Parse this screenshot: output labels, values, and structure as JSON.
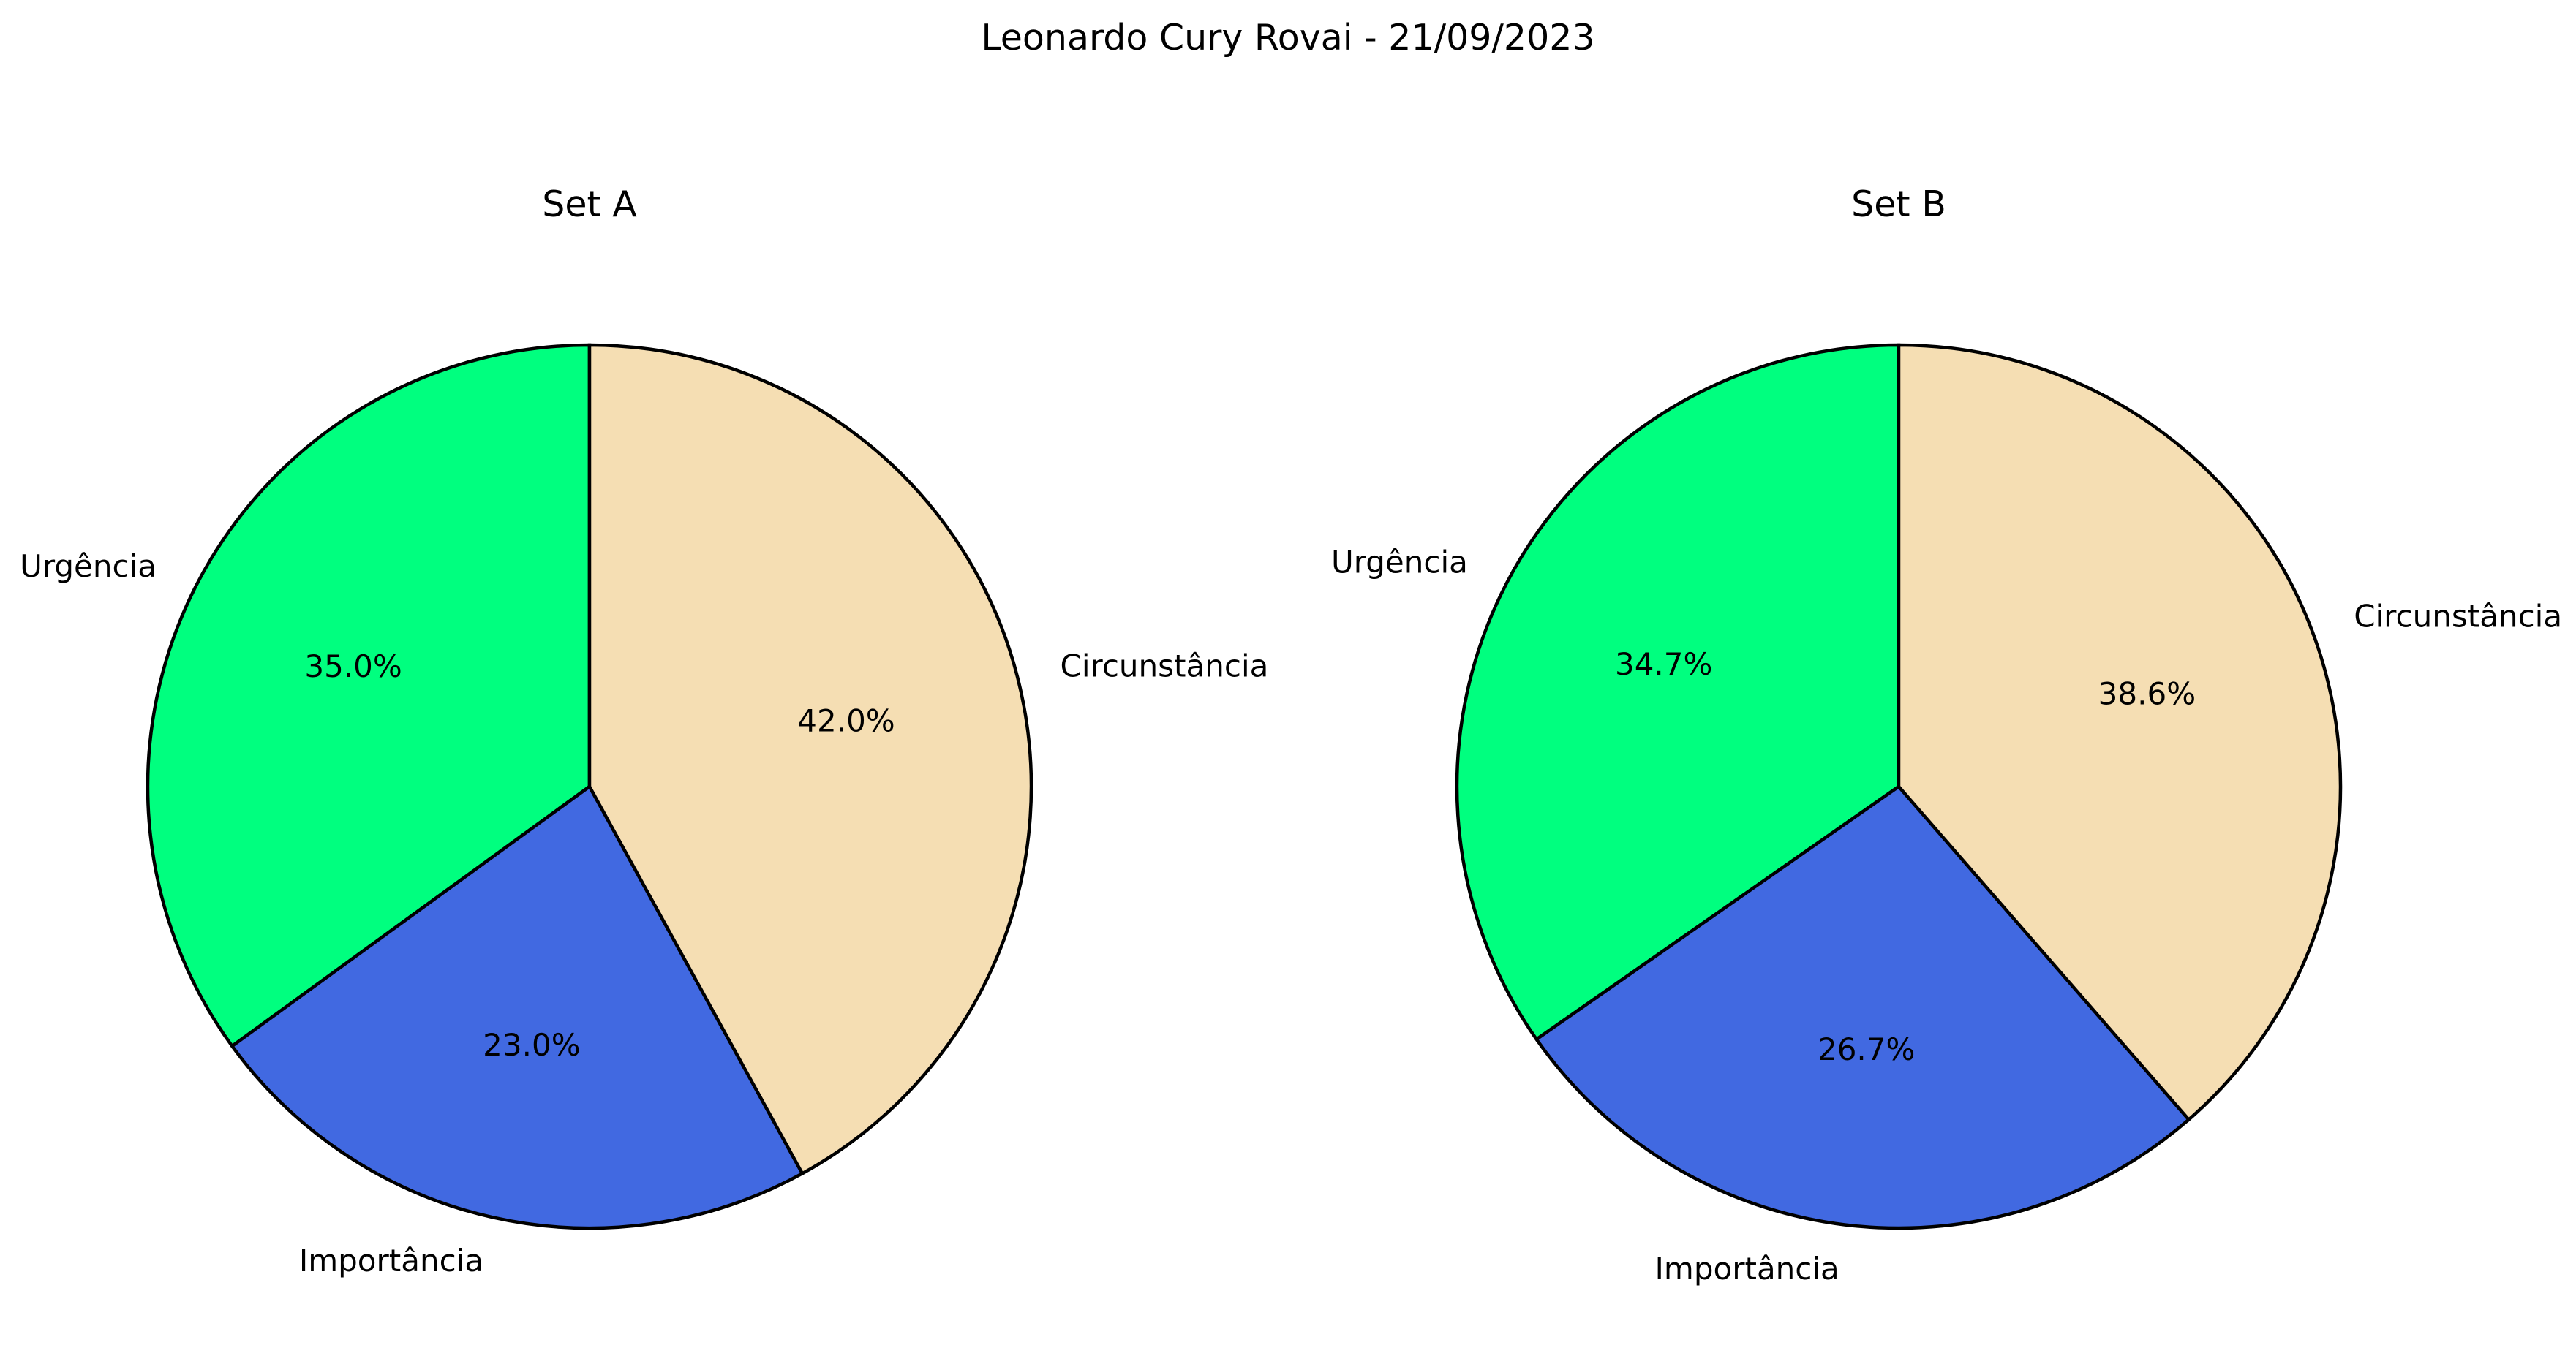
{
  "suptitle": "Leonardo Cury Rovai - 21/09/2023",
  "chart_data": [
    {
      "type": "pie",
      "title": "Set A",
      "start_angle_deg": 90,
      "direction": "counterclockwise",
      "edge_color": "#000000",
      "slices": [
        {
          "label": "Urgência",
          "value": 35.0,
          "pct_label": "35.0%",
          "color": "#00ff7f"
        },
        {
          "label": "Importância",
          "value": 23.0,
          "pct_label": "23.0%",
          "color": "#4169e1"
        },
        {
          "label": "Circunstância",
          "value": 42.0,
          "pct_label": "42.0%",
          "color": "#f5deb3"
        }
      ]
    },
    {
      "type": "pie",
      "title": "Set B",
      "start_angle_deg": 90,
      "direction": "counterclockwise",
      "edge_color": "#000000",
      "slices": [
        {
          "label": "Urgência",
          "value": 34.7,
          "pct_label": "34.7%",
          "color": "#00ff7f"
        },
        {
          "label": "Importância",
          "value": 26.7,
          "pct_label": "26.7%",
          "color": "#4169e1"
        },
        {
          "label": "Circunstância",
          "value": 38.6,
          "pct_label": "38.6%",
          "color": "#f5deb3"
        }
      ]
    }
  ]
}
